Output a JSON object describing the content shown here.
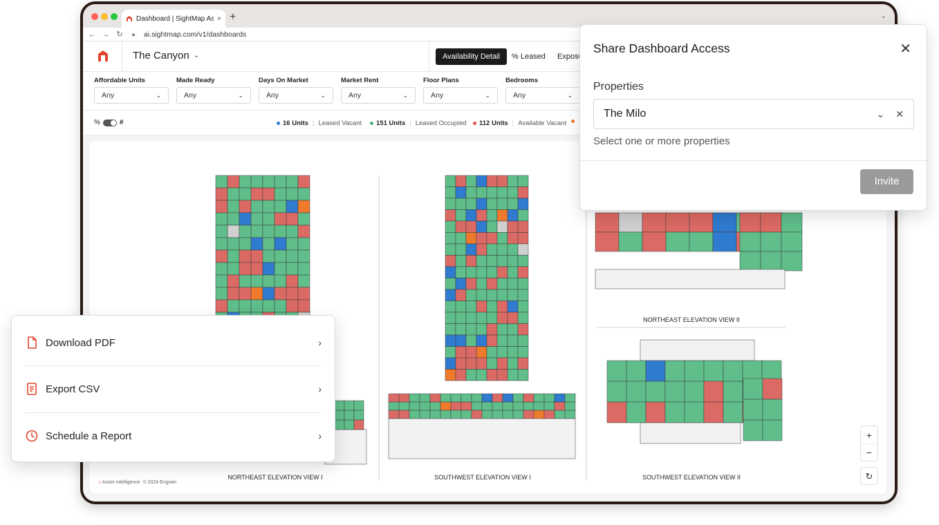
{
  "browser": {
    "tab_title": "Dashboard | SightMap Asset In",
    "url": "ai.sightmap.com/v1/dashboards"
  },
  "header": {
    "property_name": "The Canyon",
    "views": [
      "Availability Detail",
      "% Leased",
      "Exposu"
    ]
  },
  "filters": [
    {
      "label": "Affordable Units",
      "value": "Any"
    },
    {
      "label": "Made Ready",
      "value": "Any"
    },
    {
      "label": "Days On Market",
      "value": "Any"
    },
    {
      "label": "Market Rent",
      "value": "Any"
    },
    {
      "label": "Floor Plans",
      "value": "Any"
    },
    {
      "label": "Bedrooms",
      "value": "Any"
    }
  ],
  "toggle": {
    "left": "%",
    "right": "#"
  },
  "legend": [
    {
      "count": "16 Units",
      "name": "Leased Vacant",
      "color": "#2f7bd0"
    },
    {
      "count": "151 Units",
      "name": "Leased Occupied",
      "color": "#4caf7d"
    },
    {
      "count": "112 Units",
      "name": "Available Vacant",
      "color": "#d9534f"
    }
  ],
  "captions": {
    "ne1": "NORTHEAST ELEVATION VIEW I",
    "sw1": "SOUTHWEST ELEVATION VIEW I",
    "ne2": "NORTHEAST ELEVATION VIEW II",
    "sw2": "SOUTHWEST ELEVATION VIEW II"
  },
  "footer": {
    "brand": "Asset Intelligence",
    "copyright": "© 2024 Engrain"
  },
  "zoom": {
    "in": "+",
    "out": "−",
    "reset": "↻"
  },
  "share": {
    "title": "Share Dashboard Access",
    "properties_label": "Properties",
    "selected": "The Milo",
    "help": "Select one or more properties",
    "invite": "Invite"
  },
  "menu": {
    "items": [
      {
        "label": "Download PDF"
      },
      {
        "label": "Export CSV"
      },
      {
        "label": "Schedule a Report"
      }
    ]
  },
  "colors": {
    "accent": "#e0452b",
    "green": "#5fbe8a",
    "red": "#dc6a64",
    "blue": "#2f7bd0",
    "orange": "#f07a2c"
  }
}
